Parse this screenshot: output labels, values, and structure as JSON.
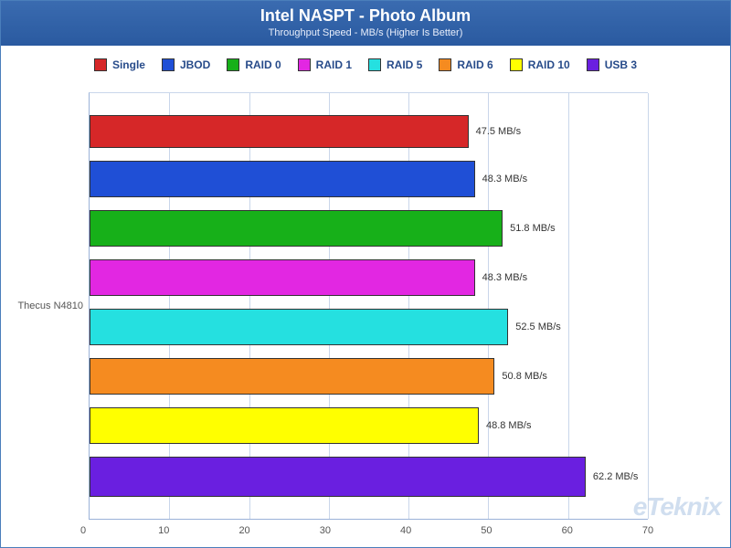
{
  "title": "Intel NASPT - Photo Album",
  "subtitle": "Throughput Speed - MB/s (Higher Is Better)",
  "watermark": "eTeknix",
  "y_category_label": "Thecus N4810",
  "x_axis": {
    "min": 0,
    "max": 70,
    "tick_step": 10,
    "ticks": [
      0,
      10,
      20,
      30,
      40,
      50,
      60,
      70
    ]
  },
  "grid_color": "#c9d6ea",
  "axis_color": "#9ab2d8",
  "background_color": "#ffffff",
  "title_band_gradient_top": "#3a6bb0",
  "title_band_gradient_bottom": "#2a5aa0",
  "title_fontsize": 18,
  "subtitle_fontsize": 11,
  "legend_fontsize": 12,
  "label_fontsize": 11,
  "bar_border_color": "#333333",
  "series": [
    {
      "name": "Single",
      "label": "Single",
      "color": "#d62728",
      "value": 47.5,
      "value_label": "47.5 MB/s"
    },
    {
      "name": "JBOD",
      "label": "JBOD",
      "color": "#1f4fd6",
      "value": 48.3,
      "value_label": "48.3 MB/s"
    },
    {
      "name": "RAID 0",
      "label": "RAID 0",
      "color": "#17b019",
      "value": 51.8,
      "value_label": "51.8 MB/s"
    },
    {
      "name": "RAID 1",
      "label": "RAID 1",
      "color": "#e227e2",
      "value": 48.3,
      "value_label": "48.3 MB/s"
    },
    {
      "name": "RAID 5",
      "label": "RAID 5",
      "color": "#25e0e0",
      "value": 52.5,
      "value_label": "52.5 MB/s"
    },
    {
      "name": "RAID 6",
      "label": "RAID 6",
      "color": "#f58b20",
      "value": 50.8,
      "value_label": "50.8 MB/s"
    },
    {
      "name": "RAID 10",
      "label": "RAID 10",
      "color": "#ffff00",
      "value": 48.8,
      "value_label": "48.8 MB/s"
    },
    {
      "name": "USB 3",
      "label": "USB 3",
      "color": "#6a1fe0",
      "value": 62.2,
      "value_label": "62.2 MB/s"
    }
  ]
}
